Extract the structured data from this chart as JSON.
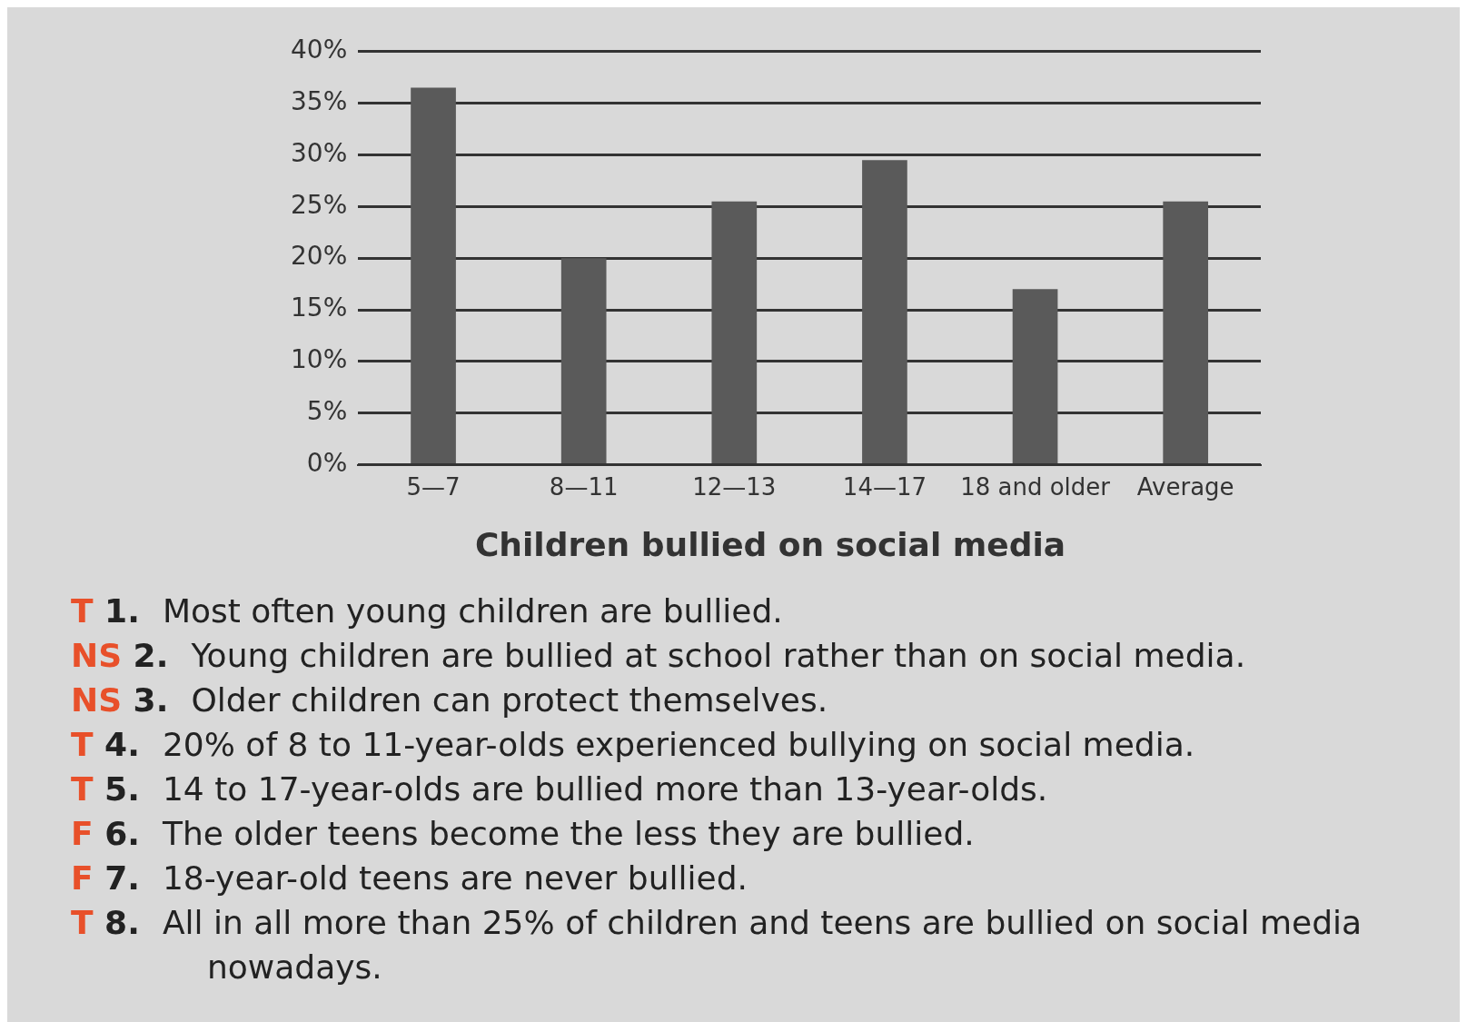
{
  "chart_data": {
    "type": "bar",
    "title": "Children bullied on social media",
    "categories": [
      "5—7",
      "8—11",
      "12—13",
      "14—17",
      "18 and older",
      "Average"
    ],
    "values": [
      36.5,
      20,
      25.5,
      29.5,
      17,
      25.5
    ],
    "color": "#5a5a5a",
    "ylim": [
      0,
      40
    ],
    "yticks": [
      {
        "value": 0,
        "label": "0%"
      },
      {
        "value": 5,
        "label": "5%"
      },
      {
        "value": 10,
        "label": "10%"
      },
      {
        "value": 15,
        "label": "15%"
      },
      {
        "value": 20,
        "label": "20%"
      },
      {
        "value": 25,
        "label": "25%"
      },
      {
        "value": 30,
        "label": "30%"
      },
      {
        "value": 35,
        "label": "35%"
      },
      {
        "value": 40,
        "label": "40%"
      }
    ],
    "grid": "y",
    "legend": false,
    "annotations": [
      "T 1. Most often young children are bullied.",
      "NS 2. Young children are bullied at school rather than on social media.",
      "NS 3. Older children can protect themselves.",
      "T 4. 20% of 8 to 11-year-olds experienced bullying on social media.",
      "T 5. 14 to 17-year-olds are bullied more than 13-year-olds.",
      "F 6. The older teens become the less they are bullied.",
      "F 7. 18-year-old teens are never bullied.",
      "T 8. All in all more than 25% of children and teens are bullied on social media nowadays."
    ]
  }
}
